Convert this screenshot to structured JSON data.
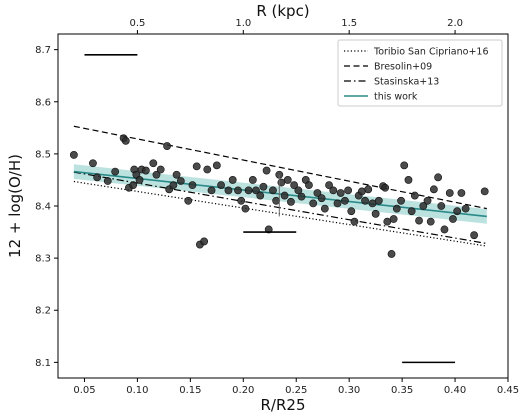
{
  "chart_data": {
    "type": "scatter",
    "xlabel": "R/R25",
    "ylabel": "12 + log(O/H)",
    "top_axis_label": "R (kpc)",
    "xlim": [
      0.025,
      0.45
    ],
    "ylim": [
      8.07,
      8.73
    ],
    "x_ticks": [
      0.05,
      0.1,
      0.15,
      0.2,
      0.25,
      0.3,
      0.35,
      0.4,
      0.45
    ],
    "x_tick_labels": [
      "0.05",
      "0.10",
      "0.15",
      "0.20",
      "0.25",
      "0.30",
      "0.35",
      "0.40",
      "0.45"
    ],
    "y_ticks": [
      8.1,
      8.2,
      8.3,
      8.4,
      8.5,
      8.6,
      8.7
    ],
    "y_tick_labels": [
      "8.1",
      "8.2",
      "8.3",
      "8.4",
      "8.5",
      "8.6",
      "8.7"
    ],
    "top_ticks": [
      0.5,
      1.0,
      1.5,
      2.0
    ],
    "top_tick_labels": [
      "0.5",
      "1.0",
      "1.5",
      "2.0"
    ],
    "top_ticks_r25_position": [
      0.1,
      0.2,
      0.3,
      0.4
    ],
    "grid": false,
    "legend_position": "top-right",
    "legend": [
      {
        "label": "Toribio San Cipriano+16",
        "style": "dotted",
        "color": "#000000"
      },
      {
        "label": "Bresolin+09",
        "style": "dashed",
        "color": "#000000"
      },
      {
        "label": "Stasinska+13",
        "style": "dashdot",
        "color": "#000000"
      },
      {
        "label": "this work",
        "style": "solid",
        "color": "#2a8a8a"
      }
    ],
    "lines": [
      {
        "name": "Toribio San Cipriano+16",
        "style": "dotted",
        "x": [
          0.04,
          0.43
        ],
        "y": [
          8.447,
          8.323
        ]
      },
      {
        "name": "Bresolin+09",
        "style": "dashed",
        "x": [
          0.04,
          0.43
        ],
        "y": [
          8.553,
          8.395
        ]
      },
      {
        "name": "Stasinska+13",
        "style": "dashdot",
        "x": [
          0.04,
          0.43
        ],
        "y": [
          8.465,
          8.328
        ]
      },
      {
        "name": "this work",
        "style": "solid",
        "x": [
          0.04,
          0.43
        ],
        "y": [
          8.466,
          8.38
        ],
        "band_halfwidth": 0.014
      }
    ],
    "error_bar_samples": [
      {
        "x": 0.075,
        "y": 8.69,
        "half_width": 0.025,
        "orientation": "horizontal"
      },
      {
        "x": 0.225,
        "y": 8.35,
        "half_width": 0.025,
        "orientation": "horizontal"
      },
      {
        "x": 0.375,
        "y": 8.1,
        "half_width": 0.025,
        "orientation": "horizontal"
      },
      {
        "x": 0.234,
        "y": 8.42,
        "half_height": 0.04,
        "orientation": "vertical"
      }
    ],
    "points": [
      {
        "x": 0.04,
        "y": 8.498
      },
      {
        "x": 0.058,
        "y": 8.482
      },
      {
        "x": 0.062,
        "y": 8.455
      },
      {
        "x": 0.072,
        "y": 8.448
      },
      {
        "x": 0.079,
        "y": 8.466
      },
      {
        "x": 0.087,
        "y": 8.53
      },
      {
        "x": 0.089,
        "y": 8.525
      },
      {
        "x": 0.092,
        "y": 8.435
      },
      {
        "x": 0.096,
        "y": 8.44
      },
      {
        "x": 0.097,
        "y": 8.47
      },
      {
        "x": 0.099,
        "y": 8.46
      },
      {
        "x": 0.102,
        "y": 8.45
      },
      {
        "x": 0.104,
        "y": 8.47
      },
      {
        "x": 0.108,
        "y": 8.468
      },
      {
        "x": 0.115,
        "y": 8.482
      },
      {
        "x": 0.118,
        "y": 8.46
      },
      {
        "x": 0.122,
        "y": 8.47
      },
      {
        "x": 0.128,
        "y": 8.515
      },
      {
        "x": 0.13,
        "y": 8.432
      },
      {
        "x": 0.134,
        "y": 8.44
      },
      {
        "x": 0.137,
        "y": 8.46
      },
      {
        "x": 0.141,
        "y": 8.448
      },
      {
        "x": 0.148,
        "y": 8.41
      },
      {
        "x": 0.152,
        "y": 8.44
      },
      {
        "x": 0.156,
        "y": 8.476
      },
      {
        "x": 0.159,
        "y": 8.326
      },
      {
        "x": 0.163,
        "y": 8.332
      },
      {
        "x": 0.166,
        "y": 8.47
      },
      {
        "x": 0.17,
        "y": 8.43
      },
      {
        "x": 0.175,
        "y": 8.478
      },
      {
        "x": 0.179,
        "y": 8.44
      },
      {
        "x": 0.186,
        "y": 8.43
      },
      {
        "x": 0.19,
        "y": 8.45
      },
      {
        "x": 0.195,
        "y": 8.43
      },
      {
        "x": 0.198,
        "y": 8.41
      },
      {
        "x": 0.202,
        "y": 8.395
      },
      {
        "x": 0.205,
        "y": 8.43
      },
      {
        "x": 0.209,
        "y": 8.45
      },
      {
        "x": 0.212,
        "y": 8.43
      },
      {
        "x": 0.216,
        "y": 8.42
      },
      {
        "x": 0.219,
        "y": 8.437
      },
      {
        "x": 0.222,
        "y": 8.468
      },
      {
        "x": 0.224,
        "y": 8.355
      },
      {
        "x": 0.228,
        "y": 8.43
      },
      {
        "x": 0.231,
        "y": 8.41
      },
      {
        "x": 0.234,
        "y": 8.46
      },
      {
        "x": 0.236,
        "y": 8.445
      },
      {
        "x": 0.239,
        "y": 8.42
      },
      {
        "x": 0.242,
        "y": 8.45
      },
      {
        "x": 0.245,
        "y": 8.408
      },
      {
        "x": 0.248,
        "y": 8.44
      },
      {
        "x": 0.252,
        "y": 8.43
      },
      {
        "x": 0.255,
        "y": 8.418
      },
      {
        "x": 0.259,
        "y": 8.45
      },
      {
        "x": 0.262,
        "y": 8.44
      },
      {
        "x": 0.266,
        "y": 8.405
      },
      {
        "x": 0.27,
        "y": 8.425
      },
      {
        "x": 0.274,
        "y": 8.415
      },
      {
        "x": 0.277,
        "y": 8.395
      },
      {
        "x": 0.281,
        "y": 8.44
      },
      {
        "x": 0.285,
        "y": 8.43
      },
      {
        "x": 0.289,
        "y": 8.405
      },
      {
        "x": 0.292,
        "y": 8.425
      },
      {
        "x": 0.296,
        "y": 8.41
      },
      {
        "x": 0.299,
        "y": 8.43
      },
      {
        "x": 0.302,
        "y": 8.39
      },
      {
        "x": 0.305,
        "y": 8.37
      },
      {
        "x": 0.309,
        "y": 8.42
      },
      {
        "x": 0.312,
        "y": 8.428
      },
      {
        "x": 0.315,
        "y": 8.41
      },
      {
        "x": 0.318,
        "y": 8.432
      },
      {
        "x": 0.322,
        "y": 8.405
      },
      {
        "x": 0.325,
        "y": 8.385
      },
      {
        "x": 0.328,
        "y": 8.41
      },
      {
        "x": 0.332,
        "y": 8.438
      },
      {
        "x": 0.334,
        "y": 8.435
      },
      {
        "x": 0.336,
        "y": 8.37
      },
      {
        "x": 0.34,
        "y": 8.308
      },
      {
        "x": 0.342,
        "y": 8.375
      },
      {
        "x": 0.345,
        "y": 8.395
      },
      {
        "x": 0.349,
        "y": 8.41
      },
      {
        "x": 0.352,
        "y": 8.478
      },
      {
        "x": 0.356,
        "y": 8.45
      },
      {
        "x": 0.359,
        "y": 8.39
      },
      {
        "x": 0.362,
        "y": 8.42
      },
      {
        "x": 0.366,
        "y": 8.372
      },
      {
        "x": 0.37,
        "y": 8.4
      },
      {
        "x": 0.374,
        "y": 8.41
      },
      {
        "x": 0.377,
        "y": 8.37
      },
      {
        "x": 0.38,
        "y": 8.432
      },
      {
        "x": 0.384,
        "y": 8.455
      },
      {
        "x": 0.387,
        "y": 8.4
      },
      {
        "x": 0.39,
        "y": 8.355
      },
      {
        "x": 0.395,
        "y": 8.425
      },
      {
        "x": 0.398,
        "y": 8.375
      },
      {
        "x": 0.402,
        "y": 8.39
      },
      {
        "x": 0.406,
        "y": 8.425
      },
      {
        "x": 0.41,
        "y": 8.395
      },
      {
        "x": 0.418,
        "y": 8.344
      },
      {
        "x": 0.428,
        "y": 8.428
      }
    ]
  }
}
